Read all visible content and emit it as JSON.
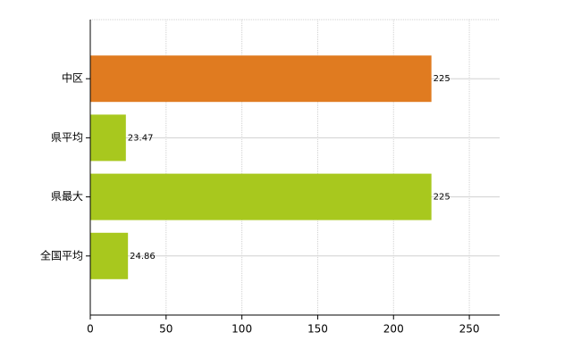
{
  "chart_data": {
    "type": "bar",
    "orientation": "horizontal",
    "categories": [
      "中区",
      "県平均",
      "県最大",
      "全国平均"
    ],
    "values": [
      225,
      23.47,
      225,
      24.86
    ],
    "colors": [
      "#e07b20",
      "#a8c81e",
      "#a8c81e",
      "#a8c81e"
    ],
    "xlim": [
      0,
      270
    ],
    "xticks": [
      0,
      50,
      100,
      150,
      200,
      250
    ],
    "grid": true
  }
}
